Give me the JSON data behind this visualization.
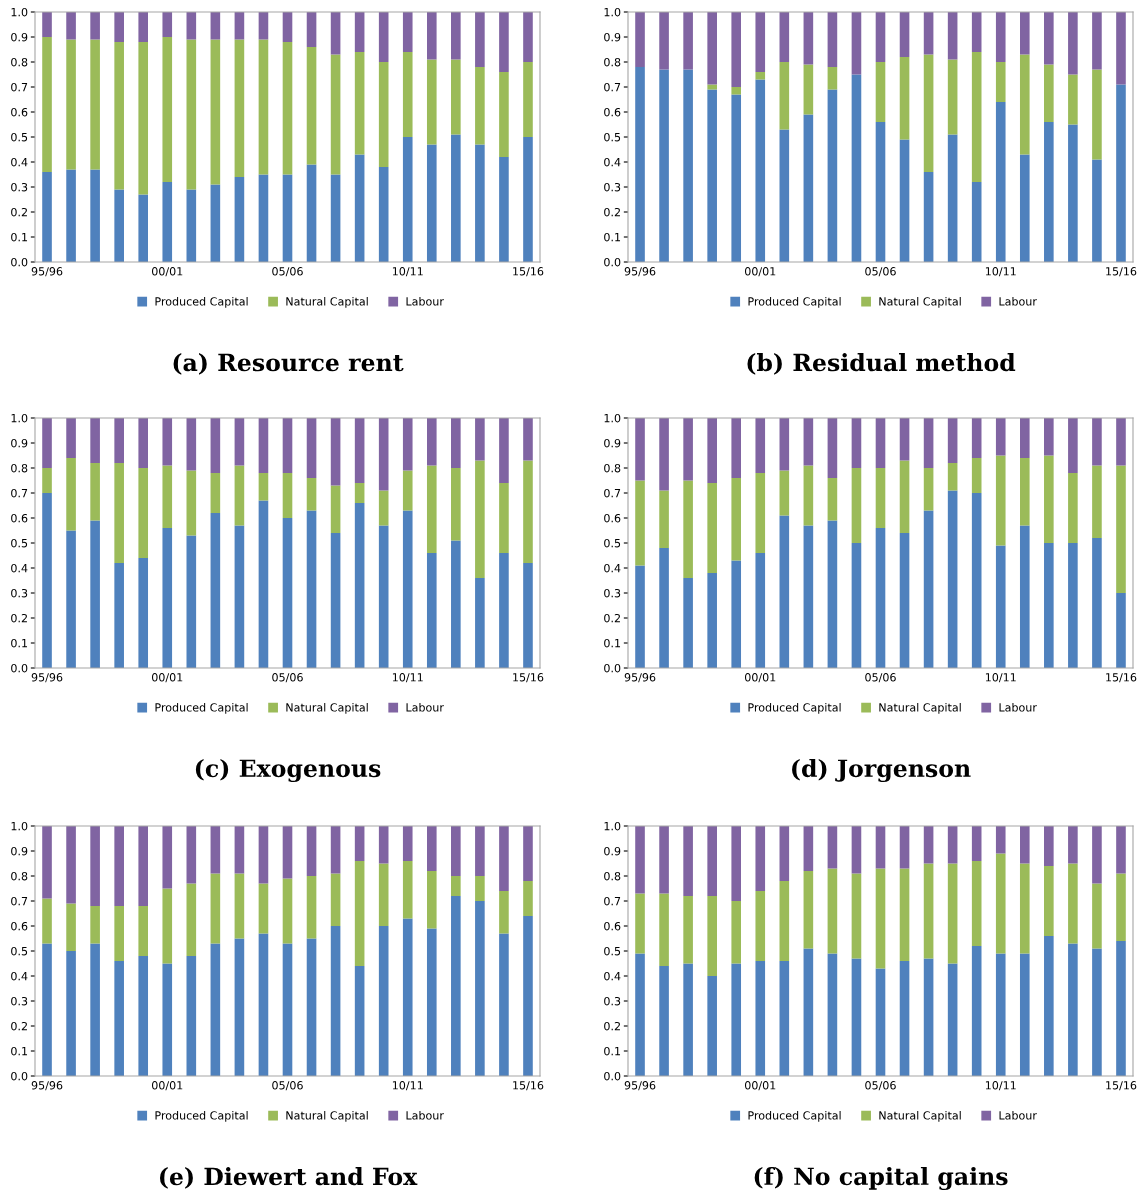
{
  "chart_data": [
    {
      "type": "bar",
      "stacked": true,
      "title": "(a) Resource rent",
      "legend": "bottom",
      "categories": [
        "95/96",
        null,
        null,
        null,
        null,
        "00/01",
        null,
        null,
        null,
        null,
        "05/06",
        null,
        null,
        null,
        null,
        "10/11",
        null,
        null,
        null,
        null,
        "15/16"
      ],
      "ylim": [
        0,
        1
      ],
      "yticks": [
        {
          "value": 0,
          "label": "0.0"
        },
        {
          "value": 0.1,
          "label": "0.1"
        },
        {
          "value": 0.2,
          "label": "0.2"
        },
        {
          "value": 0.3,
          "label": "0.3"
        },
        {
          "value": 0.4,
          "label": "0.4"
        },
        {
          "value": 0.5,
          "label": "0.5"
        },
        {
          "value": 0.6,
          "label": "0.6"
        },
        {
          "value": 0.7,
          "label": "0.7"
        },
        {
          "value": 0.8,
          "label": "0.8"
        },
        {
          "value": 0.9,
          "label": "0.9"
        },
        {
          "value": 1,
          "label": "1.0"
        }
      ],
      "series": [
        {
          "name": "Produced Capital",
          "color": "#4f81bd",
          "values": [
            0.36,
            0.37,
            0.37,
            0.29,
            0.27,
            0.32,
            0.29,
            0.31,
            0.34,
            0.35,
            0.35,
            0.39,
            0.35,
            0.43,
            0.38,
            0.5,
            0.47,
            0.51,
            0.47,
            0.42,
            0.5
          ]
        },
        {
          "name": "Natural Capital",
          "color": "#9bbb59",
          "values": [
            0.54,
            0.52,
            0.52,
            0.59,
            0.61,
            0.58,
            0.6,
            0.58,
            0.55,
            0.54,
            0.53,
            0.47,
            0.48,
            0.41,
            0.42,
            0.34,
            0.34,
            0.3,
            0.31,
            0.34,
            0.3
          ]
        },
        {
          "name": "Labour",
          "color": "#8064a2",
          "values": [
            0.1,
            0.11,
            0.11,
            0.12,
            0.12,
            0.1,
            0.11,
            0.11,
            0.11,
            0.11,
            0.12,
            0.14,
            0.17,
            0.16,
            0.2,
            0.16,
            0.19,
            0.19,
            0.22,
            0.24,
            0.2
          ]
        }
      ]
    },
    {
      "type": "bar",
      "stacked": true,
      "title": "(b) Residual method",
      "legend": "bottom",
      "categories": [
        "95/96",
        null,
        null,
        null,
        null,
        "00/01",
        null,
        null,
        null,
        null,
        "05/06",
        null,
        null,
        null,
        null,
        "10/11",
        null,
        null,
        null,
        null,
        "15/16"
      ],
      "ylim": [
        0,
        1
      ],
      "yticks": [
        {
          "value": 0,
          "label": "0.0"
        },
        {
          "value": 0.1,
          "label": "0.1"
        },
        {
          "value": 0.2,
          "label": "0.2"
        },
        {
          "value": 0.3,
          "label": "0.3"
        },
        {
          "value": 0.4,
          "label": "0.4"
        },
        {
          "value": 0.5,
          "label": "0.5"
        },
        {
          "value": 0.6,
          "label": "0.6"
        },
        {
          "value": 0.7,
          "label": "0.7"
        },
        {
          "value": 0.8,
          "label": "0.8"
        },
        {
          "value": 0.9,
          "label": "0.9"
        },
        {
          "value": 1,
          "label": "1.0"
        }
      ],
      "series": [
        {
          "name": "Produced Capital",
          "color": "#4f81bd",
          "values": [
            0.78,
            0.77,
            0.77,
            0.69,
            0.67,
            0.73,
            0.53,
            0.59,
            0.69,
            0.75,
            0.56,
            0.49,
            0.36,
            0.51,
            0.32,
            0.64,
            0.43,
            0.56,
            0.55,
            0.41,
            0.71
          ]
        },
        {
          "name": "Natural Capital",
          "color": "#9bbb59",
          "values": [
            0,
            0,
            0,
            0.02,
            0.03,
            0.03,
            0.27,
            0.2,
            0.09,
            0,
            0.24,
            0.33,
            0.47,
            0.3,
            0.52,
            0.16,
            0.4,
            0.23,
            0.2,
            0.36,
            0
          ]
        },
        {
          "name": "Labour",
          "color": "#8064a2",
          "values": [
            0.22,
            0.23,
            0.23,
            0.29,
            0.3,
            0.24,
            0.2,
            0.21,
            0.22,
            0.25,
            0.2,
            0.18,
            0.17,
            0.19,
            0.16,
            0.2,
            0.17,
            0.21,
            0.25,
            0.23,
            0.29
          ]
        }
      ]
    },
    {
      "type": "bar",
      "stacked": true,
      "title": "(c) Exogenous",
      "legend": "bottom",
      "categories": [
        "95/96",
        null,
        null,
        null,
        null,
        "00/01",
        null,
        null,
        null,
        null,
        "05/06",
        null,
        null,
        null,
        null,
        "10/11",
        null,
        null,
        null,
        null,
        "15/16"
      ],
      "ylim": [
        0,
        1
      ],
      "yticks": [
        {
          "value": 0,
          "label": "0.0"
        },
        {
          "value": 0.1,
          "label": "0.1"
        },
        {
          "value": 0.2,
          "label": "0.2"
        },
        {
          "value": 0.3,
          "label": "0.3"
        },
        {
          "value": 0.4,
          "label": "0.4"
        },
        {
          "value": 0.5,
          "label": "0.5"
        },
        {
          "value": 0.6,
          "label": "0.6"
        },
        {
          "value": 0.7,
          "label": "0.7"
        },
        {
          "value": 0.8,
          "label": "0.8"
        },
        {
          "value": 0.9,
          "label": "0.9"
        },
        {
          "value": 1,
          "label": "1.0"
        }
      ],
      "series": [
        {
          "name": "Produced Capital",
          "color": "#4f81bd",
          "values": [
            0.7,
            0.55,
            0.59,
            0.42,
            0.44,
            0.56,
            0.53,
            0.62,
            0.57,
            0.67,
            0.6,
            0.63,
            0.54,
            0.66,
            0.57,
            0.63,
            0.46,
            0.51,
            0.36,
            0.46,
            0.42
          ]
        },
        {
          "name": "Natural Capital",
          "color": "#9bbb59",
          "values": [
            0.1,
            0.29,
            0.23,
            0.4,
            0.36,
            0.25,
            0.26,
            0.16,
            0.24,
            0.11,
            0.18,
            0.13,
            0.19,
            0.08,
            0.14,
            0.16,
            0.35,
            0.29,
            0.47,
            0.28,
            0.41
          ]
        },
        {
          "name": "Labour",
          "color": "#8064a2",
          "values": [
            0.2,
            0.16,
            0.18,
            0.18,
            0.2,
            0.19,
            0.21,
            0.22,
            0.19,
            0.22,
            0.22,
            0.24,
            0.27,
            0.26,
            0.29,
            0.21,
            0.19,
            0.2,
            0.17,
            0.26,
            0.17
          ]
        }
      ]
    },
    {
      "type": "bar",
      "stacked": true,
      "title": "(d) Jorgenson",
      "legend": "bottom",
      "categories": [
        "95/96",
        null,
        null,
        null,
        null,
        "00/01",
        null,
        null,
        null,
        null,
        "05/06",
        null,
        null,
        null,
        null,
        "10/11",
        null,
        null,
        null,
        null,
        "15/16"
      ],
      "ylim": [
        0,
        1
      ],
      "yticks": [
        {
          "value": 0,
          "label": "0.0"
        },
        {
          "value": 0.1,
          "label": "0.1"
        },
        {
          "value": 0.2,
          "label": "0.2"
        },
        {
          "value": 0.3,
          "label": "0.3"
        },
        {
          "value": 0.4,
          "label": "0.4"
        },
        {
          "value": 0.5,
          "label": "0.5"
        },
        {
          "value": 0.6,
          "label": "0.6"
        },
        {
          "value": 0.7,
          "label": "0.7"
        },
        {
          "value": 0.8,
          "label": "0.8"
        },
        {
          "value": 0.9,
          "label": "0.9"
        },
        {
          "value": 1,
          "label": "1.0"
        }
      ],
      "series": [
        {
          "name": "Produced Capital",
          "color": "#4f81bd",
          "values": [
            0.41,
            0.48,
            0.36,
            0.38,
            0.43,
            0.46,
            0.61,
            0.57,
            0.59,
            0.5,
            0.56,
            0.54,
            0.63,
            0.71,
            0.7,
            0.49,
            0.57,
            0.5,
            0.5,
            0.52,
            0.3
          ]
        },
        {
          "name": "Natural Capital",
          "color": "#9bbb59",
          "values": [
            0.34,
            0.23,
            0.39,
            0.36,
            0.33,
            0.32,
            0.18,
            0.24,
            0.17,
            0.3,
            0.24,
            0.29,
            0.17,
            0.11,
            0.14,
            0.36,
            0.27,
            0.35,
            0.28,
            0.29,
            0.51
          ]
        },
        {
          "name": "Labour",
          "color": "#8064a2",
          "values": [
            0.25,
            0.29,
            0.25,
            0.26,
            0.24,
            0.22,
            0.21,
            0.19,
            0.24,
            0.2,
            0.2,
            0.17,
            0.2,
            0.18,
            0.16,
            0.15,
            0.16,
            0.15,
            0.22,
            0.19,
            0.19
          ]
        }
      ]
    },
    {
      "type": "bar",
      "stacked": true,
      "title": "(e) Diewert and Fox",
      "legend": "bottom",
      "categories": [
        "95/96",
        null,
        null,
        null,
        null,
        "00/01",
        null,
        null,
        null,
        null,
        "05/06",
        null,
        null,
        null,
        null,
        "10/11",
        null,
        null,
        null,
        null,
        "15/16"
      ],
      "ylim": [
        0,
        1
      ],
      "yticks": [
        {
          "value": 0,
          "label": "0.0"
        },
        {
          "value": 0.1,
          "label": "0.1"
        },
        {
          "value": 0.2,
          "label": "0.2"
        },
        {
          "value": 0.3,
          "label": "0.3"
        },
        {
          "value": 0.4,
          "label": "0.4"
        },
        {
          "value": 0.5,
          "label": "0.5"
        },
        {
          "value": 0.6,
          "label": "0.6"
        },
        {
          "value": 0.7,
          "label": "0.7"
        },
        {
          "value": 0.8,
          "label": "0.8"
        },
        {
          "value": 0.9,
          "label": "0.9"
        },
        {
          "value": 1,
          "label": "1.0"
        }
      ],
      "series": [
        {
          "name": "Produced Capital",
          "color": "#4f81bd",
          "values": [
            0.53,
            0.5,
            0.53,
            0.46,
            0.48,
            0.45,
            0.48,
            0.53,
            0.55,
            0.57,
            0.53,
            0.55,
            0.6,
            0.44,
            0.6,
            0.63,
            0.59,
            0.72,
            0.7,
            0.57,
            0.64
          ]
        },
        {
          "name": "Natural Capital",
          "color": "#9bbb59",
          "values": [
            0.18,
            0.19,
            0.15,
            0.22,
            0.2,
            0.3,
            0.29,
            0.28,
            0.26,
            0.2,
            0.26,
            0.25,
            0.21,
            0.42,
            0.25,
            0.23,
            0.23,
            0.08,
            0.1,
            0.17,
            0.14
          ]
        },
        {
          "name": "Labour",
          "color": "#8064a2",
          "values": [
            0.29,
            0.31,
            0.32,
            0.32,
            0.32,
            0.25,
            0.23,
            0.19,
            0.19,
            0.23,
            0.21,
            0.2,
            0.19,
            0.14,
            0.15,
            0.14,
            0.18,
            0.2,
            0.2,
            0.26,
            0.22
          ]
        }
      ]
    },
    {
      "type": "bar",
      "stacked": true,
      "title": "(f) No capital gains",
      "legend": "bottom",
      "categories": [
        "95/96",
        null,
        null,
        null,
        null,
        "00/01",
        null,
        null,
        null,
        null,
        "05/06",
        null,
        null,
        null,
        null,
        "10/11",
        null,
        null,
        null,
        null,
        "15/16"
      ],
      "ylim": [
        0,
        1
      ],
      "yticks": [
        {
          "value": 0,
          "label": "0.0"
        },
        {
          "value": 0.1,
          "label": "0.1"
        },
        {
          "value": 0.2,
          "label": "0.2"
        },
        {
          "value": 0.3,
          "label": "0.3"
        },
        {
          "value": 0.4,
          "label": "0.4"
        },
        {
          "value": 0.5,
          "label": "0.5"
        },
        {
          "value": 0.6,
          "label": "0.6"
        },
        {
          "value": 0.7,
          "label": "0.7"
        },
        {
          "value": 0.8,
          "label": "0.8"
        },
        {
          "value": 0.9,
          "label": "0.9"
        },
        {
          "value": 1,
          "label": "1.0"
        }
      ],
      "series": [
        {
          "name": "Produced Capital",
          "color": "#4f81bd",
          "values": [
            0.49,
            0.44,
            0.45,
            0.4,
            0.45,
            0.46,
            0.46,
            0.51,
            0.49,
            0.47,
            0.43,
            0.46,
            0.47,
            0.45,
            0.52,
            0.49,
            0.49,
            0.56,
            0.53,
            0.51,
            0.54
          ]
        },
        {
          "name": "Natural Capital",
          "color": "#9bbb59",
          "values": [
            0.24,
            0.29,
            0.27,
            0.32,
            0.25,
            0.28,
            0.32,
            0.31,
            0.34,
            0.34,
            0.4,
            0.37,
            0.38,
            0.4,
            0.34,
            0.4,
            0.36,
            0.28,
            0.32,
            0.26,
            0.27
          ]
        },
        {
          "name": "Labour",
          "color": "#8064a2",
          "values": [
            0.27,
            0.27,
            0.28,
            0.28,
            0.3,
            0.26,
            0.22,
            0.18,
            0.17,
            0.19,
            0.17,
            0.17,
            0.15,
            0.15,
            0.14,
            0.11,
            0.15,
            0.16,
            0.15,
            0.23,
            0.19
          ]
        }
      ]
    }
  ]
}
